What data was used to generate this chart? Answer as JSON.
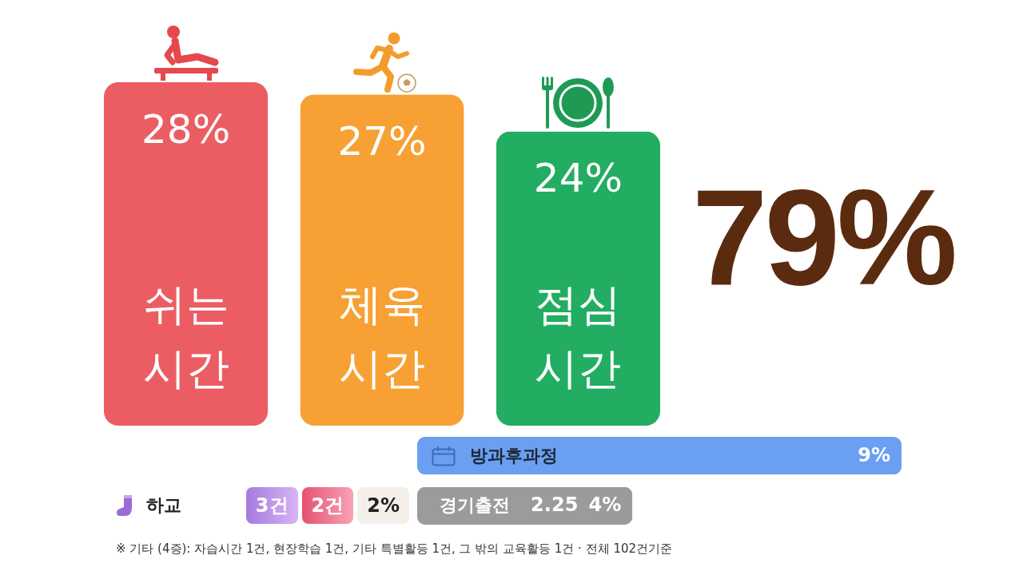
{
  "chart_data": [
    {
      "type": "bar",
      "categories": [
        "쉬는 시간",
        "체육 시간",
        "점심 시간"
      ],
      "values": [
        28,
        27,
        24
      ],
      "value_labels": [
        "28%",
        "27%",
        "24%"
      ],
      "colors": [
        "#eb5d62",
        "#f7a034",
        "#22ad62"
      ],
      "annotations": [
        "79%"
      ]
    },
    {
      "type": "bar",
      "orientation": "horizontal",
      "categories": [
        "방과후과정",
        "경기출전"
      ],
      "values": [
        9,
        4
      ],
      "value_labels": [
        "9%",
        "4%"
      ],
      "colors": [
        "#6a9ff2",
        "#9b9b9b"
      ],
      "annotations": [
        "2.25",
        "하교",
        "3건",
        "2건",
        "2%",
        "※ 기타 (4증): 자습시간 1건, 현장학습 1건, 기타 특별활등 1건, 그 밖의 교육활등 1건 · 전체 102건기준"
      ]
    }
  ]
}
